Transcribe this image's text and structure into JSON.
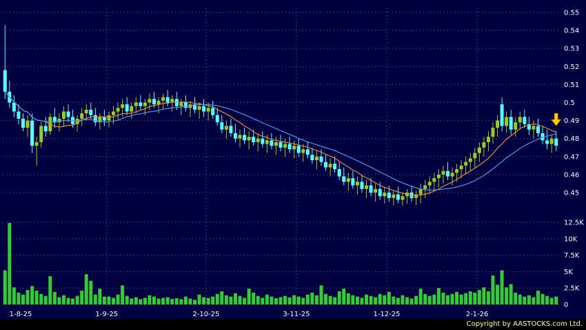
{
  "footer": {
    "copyright": "Copyright by AASTOCKS.com Ltd."
  },
  "chart_data": {
    "type": "candlestick",
    "title": "",
    "panels": [
      "price",
      "volume"
    ],
    "x_axis_labels": [
      "1-8-25",
      "1-9-25",
      "2-10-25",
      "3-11-25",
      "1-12-25",
      "2-1-26"
    ],
    "month_start_indices": [
      0,
      23,
      45,
      65,
      85,
      105
    ],
    "price_tick_values": [
      0.55,
      0.54,
      0.53,
      0.52,
      0.51,
      0.5,
      0.49,
      0.48,
      0.47,
      0.46,
      0.45
    ],
    "price_tick_labels": [
      "0.55",
      "0.54",
      "0.53",
      "0.52",
      "0.51",
      "0.5",
      "0.49",
      "0.48",
      "0.47",
      "0.46",
      "0.45"
    ],
    "volume_tick_values": [
      12500,
      10000,
      7500,
      5000,
      2500,
      0
    ],
    "volume_tick_labels": [
      "12.5K",
      "10K",
      "7.5K",
      "5K",
      "2.5K",
      "0"
    ],
    "price_range": [
      0.443,
      0.557
    ],
    "volume_range": [
      0,
      12500
    ],
    "grid": true,
    "legend": "none",
    "ma_periods": [
      10,
      20
    ],
    "colors": {
      "background": "#000040",
      "grid": "#c8c8dc",
      "up": "#99cc22",
      "down": "#55ffff",
      "volume": "#33cc33",
      "ma1": "#ee8833",
      "ma2": "#4499ee",
      "text": "#ffffff",
      "arrow": "#ffcc00",
      "copyright": "#ffff99"
    },
    "annotation": {
      "type": "down-arrow",
      "index": 122,
      "price": 0.494,
      "color": "#ffcc00"
    },
    "candles": [
      [
        0.518,
        0.543,
        0.502,
        0.506,
        5200
      ],
      [
        0.506,
        0.512,
        0.497,
        0.5,
        12400
      ],
      [
        0.5,
        0.504,
        0.492,
        0.495,
        2600
      ],
      [
        0.495,
        0.499,
        0.488,
        0.491,
        1800
      ],
      [
        0.491,
        0.494,
        0.484,
        0.486,
        1500
      ],
      [
        0.486,
        0.493,
        0.481,
        0.49,
        2200
      ],
      [
        0.49,
        0.494,
        0.472,
        0.476,
        2800
      ],
      [
        0.476,
        0.481,
        0.465,
        0.478,
        2100
      ],
      [
        0.478,
        0.489,
        0.475,
        0.487,
        1600
      ],
      [
        0.487,
        0.492,
        0.481,
        0.484,
        1300
      ],
      [
        0.484,
        0.494,
        0.482,
        0.492,
        4300
      ],
      [
        0.492,
        0.497,
        0.486,
        0.489,
        1900
      ],
      [
        0.489,
        0.494,
        0.484,
        0.491,
        1100
      ],
      [
        0.491,
        0.498,
        0.487,
        0.495,
        1400
      ],
      [
        0.495,
        0.499,
        0.489,
        0.492,
        1000
      ],
      [
        0.492,
        0.496,
        0.486,
        0.488,
        900
      ],
      [
        0.488,
        0.493,
        0.484,
        0.491,
        1300
      ],
      [
        0.491,
        0.497,
        0.487,
        0.494,
        2100
      ],
      [
        0.494,
        0.499,
        0.49,
        0.496,
        4600
      ],
      [
        0.496,
        0.5,
        0.491,
        0.493,
        3600
      ],
      [
        0.493,
        0.497,
        0.487,
        0.489,
        1500
      ],
      [
        0.489,
        0.494,
        0.485,
        0.492,
        2400
      ],
      [
        0.492,
        0.496,
        0.487,
        0.49,
        1200
      ],
      [
        0.49,
        0.495,
        0.486,
        0.493,
        1200
      ],
      [
        0.493,
        0.498,
        0.488,
        0.495,
        1000
      ],
      [
        0.495,
        0.5,
        0.49,
        0.497,
        1500
      ],
      [
        0.497,
        0.502,
        0.492,
        0.499,
        2900
      ],
      [
        0.499,
        0.503,
        0.493,
        0.495,
        1300
      ],
      [
        0.495,
        0.5,
        0.491,
        0.498,
        900
      ],
      [
        0.498,
        0.503,
        0.494,
        0.5,
        1100
      ],
      [
        0.5,
        0.504,
        0.496,
        0.498,
        800
      ],
      [
        0.498,
        0.502,
        0.493,
        0.5,
        1000
      ],
      [
        0.5,
        0.505,
        0.496,
        0.502,
        1400
      ],
      [
        0.502,
        0.506,
        0.497,
        0.499,
        1200
      ],
      [
        0.499,
        0.503,
        0.494,
        0.501,
        900
      ],
      [
        0.501,
        0.505,
        0.496,
        0.503,
        1000
      ],
      [
        0.503,
        0.507,
        0.498,
        0.5,
        1100
      ],
      [
        0.5,
        0.504,
        0.495,
        0.502,
        850
      ],
      [
        0.502,
        0.506,
        0.496,
        0.498,
        950
      ],
      [
        0.498,
        0.502,
        0.493,
        0.5,
        800
      ],
      [
        0.5,
        0.504,
        0.495,
        0.497,
        1200
      ],
      [
        0.497,
        0.501,
        0.492,
        0.499,
        900
      ],
      [
        0.499,
        0.503,
        0.494,
        0.496,
        700
      ],
      [
        0.496,
        0.5,
        0.491,
        0.498,
        1500
      ],
      [
        0.498,
        0.502,
        0.492,
        0.495,
        1100
      ],
      [
        0.495,
        0.5,
        0.49,
        0.497,
        1000
      ],
      [
        0.497,
        0.501,
        0.491,
        0.493,
        1200
      ],
      [
        0.493,
        0.497,
        0.487,
        0.489,
        1600
      ],
      [
        0.489,
        0.493,
        0.483,
        0.485,
        2000
      ],
      [
        0.485,
        0.49,
        0.48,
        0.487,
        1400
      ],
      [
        0.487,
        0.491,
        0.481,
        0.483,
        1200
      ],
      [
        0.483,
        0.488,
        0.478,
        0.48,
        1700
      ],
      [
        0.48,
        0.485,
        0.475,
        0.482,
        1300
      ],
      [
        0.482,
        0.486,
        0.477,
        0.479,
        1000
      ],
      [
        0.479,
        0.484,
        0.474,
        0.481,
        2400
      ],
      [
        0.481,
        0.485,
        0.476,
        0.478,
        1800
      ],
      [
        0.478,
        0.483,
        0.473,
        0.48,
        1300
      ],
      [
        0.48,
        0.484,
        0.475,
        0.477,
        1000
      ],
      [
        0.477,
        0.482,
        0.472,
        0.479,
        1500
      ],
      [
        0.479,
        0.483,
        0.474,
        0.476,
        1200
      ],
      [
        0.476,
        0.481,
        0.471,
        0.478,
        950
      ],
      [
        0.478,
        0.482,
        0.473,
        0.475,
        1100
      ],
      [
        0.475,
        0.48,
        0.47,
        0.477,
        1300
      ],
      [
        0.477,
        0.481,
        0.472,
        0.474,
        1050
      ],
      [
        0.474,
        0.479,
        0.469,
        0.476,
        1400
      ],
      [
        0.476,
        0.48,
        0.47,
        0.472,
        1200
      ],
      [
        0.472,
        0.477,
        0.467,
        0.474,
        1000
      ],
      [
        0.474,
        0.478,
        0.469,
        0.471,
        1500
      ],
      [
        0.471,
        0.475,
        0.466,
        0.468,
        1800
      ],
      [
        0.468,
        0.473,
        0.463,
        0.47,
        1400
      ],
      [
        0.47,
        0.474,
        0.465,
        0.467,
        2900
      ],
      [
        0.467,
        0.471,
        0.462,
        0.464,
        1600
      ],
      [
        0.464,
        0.469,
        0.459,
        0.466,
        1300
      ],
      [
        0.466,
        0.47,
        0.461,
        0.463,
        1100
      ],
      [
        0.463,
        0.467,
        0.457,
        0.459,
        2000
      ],
      [
        0.459,
        0.464,
        0.454,
        0.456,
        2400
      ],
      [
        0.456,
        0.461,
        0.451,
        0.458,
        1700
      ],
      [
        0.458,
        0.462,
        0.452,
        0.454,
        1400
      ],
      [
        0.454,
        0.459,
        0.449,
        0.456,
        1200
      ],
      [
        0.456,
        0.46,
        0.45,
        0.452,
        1000
      ],
      [
        0.452,
        0.457,
        0.447,
        0.454,
        1500
      ],
      [
        0.454,
        0.458,
        0.448,
        0.45,
        1300
      ],
      [
        0.45,
        0.455,
        0.445,
        0.452,
        1100
      ],
      [
        0.452,
        0.456,
        0.446,
        0.448,
        1600
      ],
      [
        0.448,
        0.453,
        0.444,
        0.45,
        1400
      ],
      [
        0.45,
        0.454,
        0.445,
        0.447,
        1900
      ],
      [
        0.447,
        0.451,
        0.443,
        0.449,
        1200
      ],
      [
        0.449,
        0.453,
        0.444,
        0.446,
        1000
      ],
      [
        0.446,
        0.45,
        0.443,
        0.448,
        1400
      ],
      [
        0.448,
        0.452,
        0.444,
        0.45,
        1100
      ],
      [
        0.45,
        0.454,
        0.445,
        0.447,
        900
      ],
      [
        0.447,
        0.451,
        0.443,
        0.449,
        1300
      ],
      [
        0.449,
        0.455,
        0.444,
        0.452,
        2400
      ],
      [
        0.452,
        0.457,
        0.447,
        0.454,
        1600
      ],
      [
        0.454,
        0.459,
        0.449,
        0.456,
        1300
      ],
      [
        0.456,
        0.461,
        0.451,
        0.458,
        1500
      ],
      [
        0.458,
        0.463,
        0.453,
        0.46,
        2500
      ],
      [
        0.46,
        0.465,
        0.455,
        0.462,
        1800
      ],
      [
        0.462,
        0.467,
        0.457,
        0.459,
        1400
      ],
      [
        0.459,
        0.464,
        0.454,
        0.461,
        1600
      ],
      [
        0.461,
        0.466,
        0.456,
        0.463,
        1900
      ],
      [
        0.463,
        0.468,
        0.458,
        0.465,
        1500
      ],
      [
        0.465,
        0.47,
        0.46,
        0.467,
        1700
      ],
      [
        0.467,
        0.472,
        0.462,
        0.469,
        2000
      ],
      [
        0.469,
        0.475,
        0.464,
        0.472,
        1800
      ],
      [
        0.472,
        0.478,
        0.467,
        0.475,
        2200
      ],
      [
        0.475,
        0.481,
        0.47,
        0.478,
        2600
      ],
      [
        0.478,
        0.484,
        0.473,
        0.481,
        2000
      ],
      [
        0.481,
        0.489,
        0.477,
        0.486,
        4400
      ],
      [
        0.486,
        0.493,
        0.481,
        0.49,
        3000
      ],
      [
        0.499,
        0.503,
        0.484,
        0.487,
        5200
      ],
      [
        0.487,
        0.495,
        0.483,
        0.492,
        2600
      ],
      [
        0.492,
        0.496,
        0.482,
        0.485,
        3100
      ],
      [
        0.485,
        0.492,
        0.481,
        0.489,
        1800
      ],
      [
        0.489,
        0.495,
        0.485,
        0.492,
        1500
      ],
      [
        0.492,
        0.496,
        0.486,
        0.488,
        1200
      ],
      [
        0.488,
        0.492,
        0.482,
        0.485,
        1400
      ],
      [
        0.485,
        0.49,
        0.48,
        0.487,
        1100
      ],
      [
        0.487,
        0.491,
        0.481,
        0.483,
        2100
      ],
      [
        0.483,
        0.487,
        0.477,
        0.479,
        1600
      ],
      [
        0.479,
        0.485,
        0.474,
        0.477,
        1300
      ],
      [
        0.477,
        0.482,
        0.472,
        0.48,
        1000
      ],
      [
        0.48,
        0.484,
        0.473,
        0.476,
        1200
      ]
    ]
  }
}
